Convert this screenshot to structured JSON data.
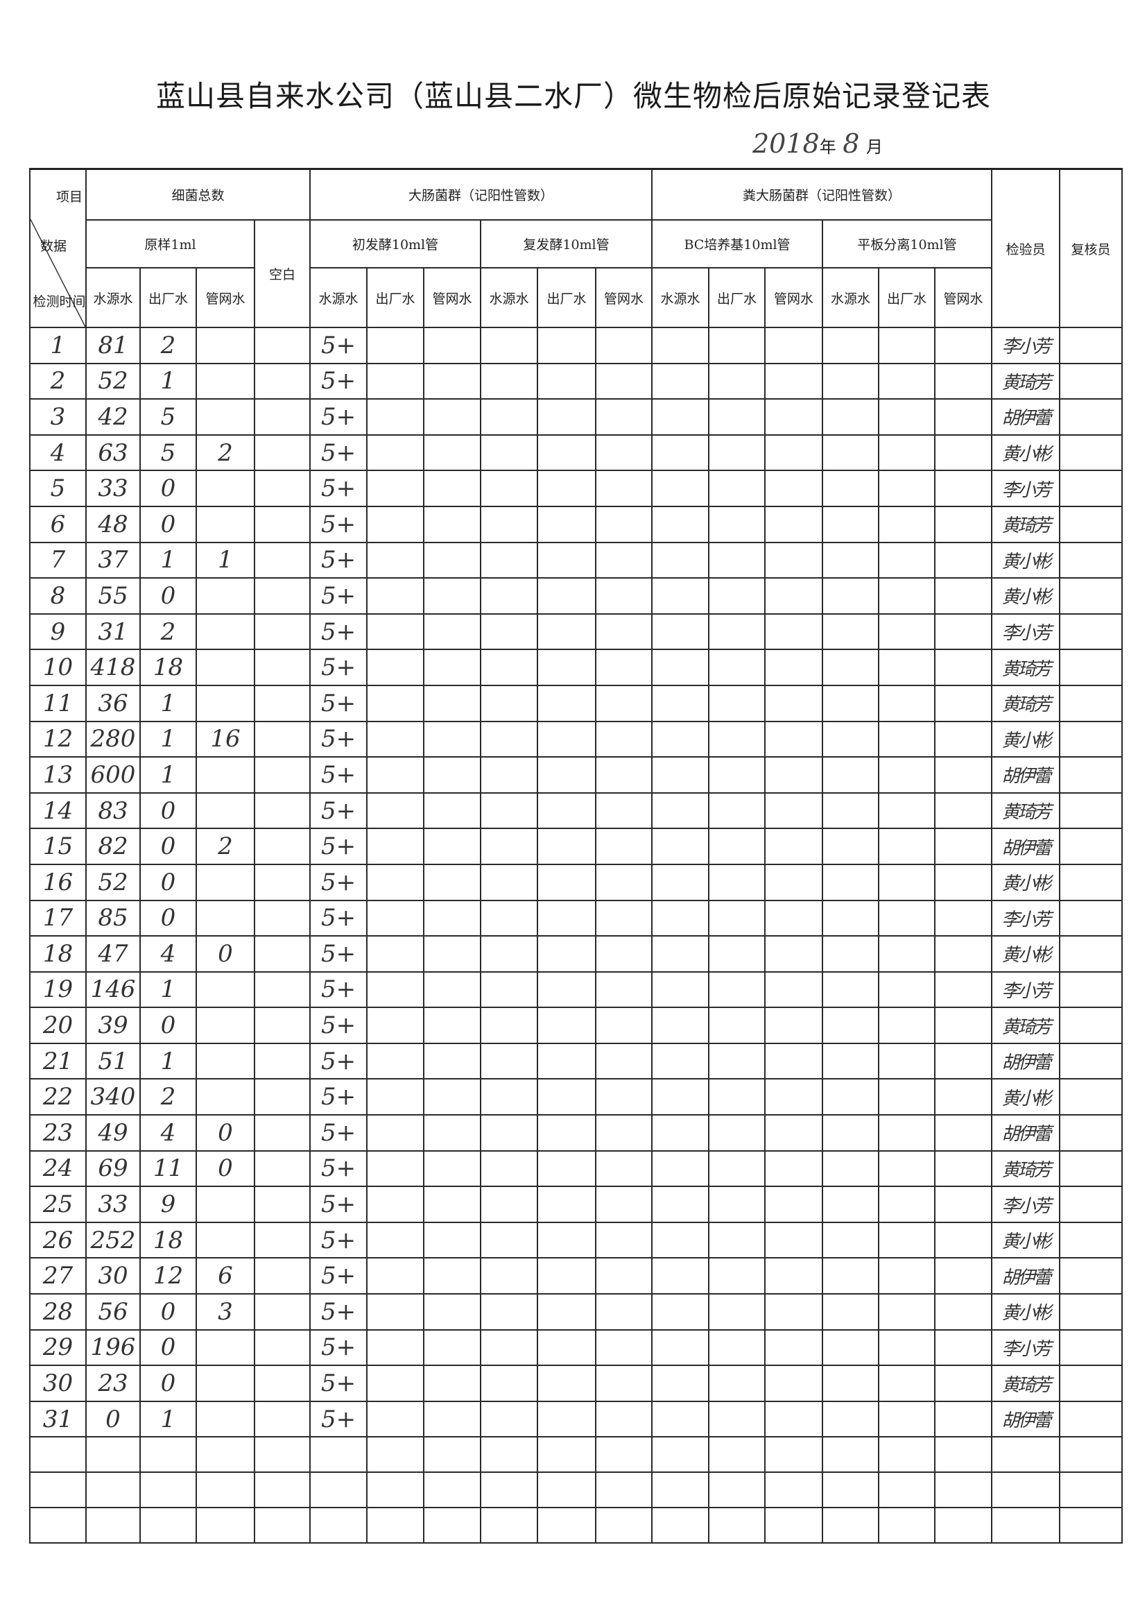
{
  "title": "蓝山县自来水公司（蓝山县二水厂）微生物检后原始记录登记表",
  "date": {
    "year": "2018",
    "year_suffix": "年",
    "month": "8",
    "month_suffix": "月"
  },
  "header": {
    "corner": {
      "top": "项目",
      "middle": "数据",
      "bottom": "检测时间"
    },
    "total_bacteria": "细菌总数",
    "coliform": "大肠菌群（记阳性管数）",
    "fecal_coliform": "粪大肠菌群（记阳性管数）",
    "raw_sample": "原样1ml",
    "blank": "空白",
    "initial_ferment": "初发酵10ml管",
    "re_ferment": "复发酵10ml管",
    "bc_medium": "BC培养基10ml管",
    "plate_isolation": "平板分离10ml管",
    "inspector": "检验员",
    "reviewer": "复核员",
    "source_water": "水源水",
    "factory_water": "出厂水",
    "network_water": "管网水"
  },
  "rows": [
    {
      "day": "1",
      "src": "81",
      "fac": "2",
      "net": "",
      "init_src": "5+",
      "inspector": "李小芳"
    },
    {
      "day": "2",
      "src": "52",
      "fac": "1",
      "net": "",
      "init_src": "5+",
      "inspector": "黄琦芳"
    },
    {
      "day": "3",
      "src": "42",
      "fac": "5",
      "net": "",
      "init_src": "5+",
      "inspector": "胡伊蕾"
    },
    {
      "day": "4",
      "src": "63",
      "fac": "5",
      "net": "2",
      "init_src": "5+",
      "inspector": "黄小彬"
    },
    {
      "day": "5",
      "src": "33",
      "fac": "0",
      "net": "",
      "init_src": "5+",
      "inspector": "李小芳"
    },
    {
      "day": "6",
      "src": "48",
      "fac": "0",
      "net": "",
      "init_src": "5+",
      "inspector": "黄琦芳"
    },
    {
      "day": "7",
      "src": "37",
      "fac": "1",
      "net": "1",
      "init_src": "5+",
      "inspector": "黄小彬"
    },
    {
      "day": "8",
      "src": "55",
      "fac": "0",
      "net": "",
      "init_src": "5+",
      "inspector": "黄小彬"
    },
    {
      "day": "9",
      "src": "31",
      "fac": "2",
      "net": "",
      "init_src": "5+",
      "inspector": "李小芳"
    },
    {
      "day": "10",
      "src": "418",
      "fac": "18",
      "net": "",
      "init_src": "5+",
      "inspector": "黄琦芳"
    },
    {
      "day": "11",
      "src": "36",
      "fac": "1",
      "net": "",
      "init_src": "5+",
      "inspector": "黄琦芳"
    },
    {
      "day": "12",
      "src": "280",
      "fac": "1",
      "net": "16",
      "init_src": "5+",
      "inspector": "黄小彬"
    },
    {
      "day": "13",
      "src": "600",
      "fac": "1",
      "net": "",
      "init_src": "5+",
      "inspector": "胡伊蕾"
    },
    {
      "day": "14",
      "src": "83",
      "fac": "0",
      "net": "",
      "init_src": "5+",
      "inspector": "黄琦芳"
    },
    {
      "day": "15",
      "src": "82",
      "fac": "0",
      "net": "2",
      "init_src": "5+",
      "inspector": "胡伊蕾"
    },
    {
      "day": "16",
      "src": "52",
      "fac": "0",
      "net": "",
      "init_src": "5+",
      "inspector": "黄小彬"
    },
    {
      "day": "17",
      "src": "85",
      "fac": "0",
      "net": "",
      "init_src": "5+",
      "inspector": "李小芳"
    },
    {
      "day": "18",
      "src": "47",
      "fac": "4",
      "net": "0",
      "init_src": "5+",
      "inspector": "黄小彬"
    },
    {
      "day": "19",
      "src": "146",
      "fac": "1",
      "net": "",
      "init_src": "5+",
      "inspector": "李小芳"
    },
    {
      "day": "20",
      "src": "39",
      "fac": "0",
      "net": "",
      "init_src": "5+",
      "inspector": "黄琦芳"
    },
    {
      "day": "21",
      "src": "51",
      "fac": "1",
      "net": "",
      "init_src": "5+",
      "inspector": "胡伊蕾"
    },
    {
      "day": "22",
      "src": "340",
      "fac": "2",
      "net": "",
      "init_src": "5+",
      "inspector": "黄小彬"
    },
    {
      "day": "23",
      "src": "49",
      "fac": "4",
      "net": "0",
      "init_src": "5+",
      "inspector": "胡伊蕾"
    },
    {
      "day": "24",
      "src": "69",
      "fac": "11",
      "net": "0",
      "init_src": "5+",
      "inspector": "黄琦芳"
    },
    {
      "day": "25",
      "src": "33",
      "fac": "9",
      "net": "",
      "init_src": "5+",
      "inspector": "李小芳"
    },
    {
      "day": "26",
      "src": "252",
      "fac": "18",
      "net": "",
      "init_src": "5+",
      "inspector": "黄小彬"
    },
    {
      "day": "27",
      "src": "30",
      "fac": "12",
      "net": "6",
      "init_src": "5+",
      "inspector": "胡伊蕾"
    },
    {
      "day": "28",
      "src": "56",
      "fac": "0",
      "net": "3",
      "init_src": "5+",
      "inspector": "黄小彬"
    },
    {
      "day": "29",
      "src": "196",
      "fac": "0",
      "net": "",
      "init_src": "5+",
      "inspector": "李小芳"
    },
    {
      "day": "30",
      "src": "23",
      "fac": "0",
      "net": "",
      "init_src": "5+",
      "inspector": "黄琦芳"
    },
    {
      "day": "31",
      "src": "0",
      "fac": "1",
      "net": "",
      "init_src": "5+",
      "inspector": "胡伊蕾"
    }
  ]
}
